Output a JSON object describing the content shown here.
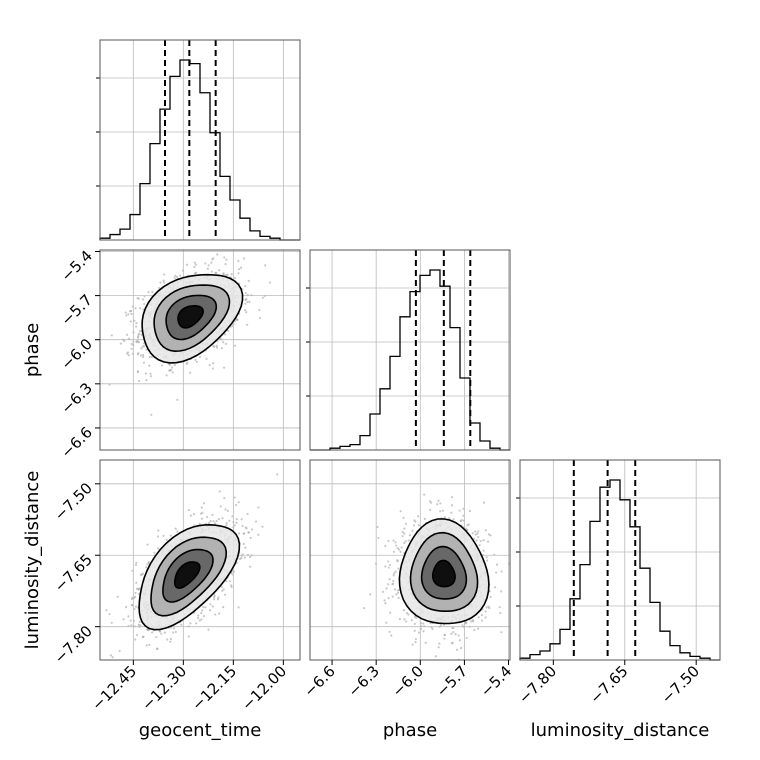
{
  "chart_data": {
    "type": "corner",
    "parameters": [
      "geocent_time",
      "phase",
      "luminosity_distance"
    ],
    "axes": {
      "geocent_time": {
        "label": "geocent_time",
        "range": [
          -12.55,
          -11.95
        ],
        "ticks": [
          -12.45,
          -12.3,
          -12.15,
          -12.0
        ],
        "tick_labels": [
          "−12.45",
          "−12.30",
          "−12.15",
          "−12.00"
        ]
      },
      "phase": {
        "label": "phase",
        "range": [
          -6.75,
          -5.39
        ],
        "ticks": [
          -6.6,
          -6.3,
          -6.0,
          -5.7,
          -5.4
        ],
        "tick_labels": [
          "−6.6",
          "−6.3",
          "−6.0",
          "−5.7",
          "−5.4"
        ]
      },
      "luminosity_distance": {
        "label": "luminosity_distance",
        "range": [
          -7.87,
          -7.45
        ],
        "ticks": [
          -7.8,
          -7.65,
          -7.5
        ],
        "tick_labels": [
          "−7.80",
          "−7.65",
          "−7.50"
        ]
      }
    },
    "marginals": [
      {
        "param": "geocent_time",
        "quantiles": [
          -12.355,
          -12.282,
          -12.203
        ],
        "bin_edges": [
          -12.55,
          -12.52,
          -12.49,
          -12.46,
          -12.43,
          -12.4,
          -12.37,
          -12.34,
          -12.31,
          -12.28,
          -12.25,
          -12.22,
          -12.19,
          -12.16,
          -12.13,
          -12.1,
          -12.07,
          -12.04,
          -12.01,
          -11.98,
          -11.95
        ],
        "counts": [
          1,
          3,
          6,
          14,
          31,
          53,
          72,
          90,
          99,
          97,
          81,
          59,
          35,
          22,
          12,
          5,
          2,
          1,
          0,
          0
        ]
      },
      {
        "param": "phase",
        "quantiles": [
          -6.03,
          -5.84,
          -5.66
        ],
        "bin_edges": [
          -6.75,
          -6.682,
          -6.614,
          -6.546,
          -6.478,
          -6.41,
          -6.342,
          -6.274,
          -6.206,
          -6.138,
          -6.07,
          -6.002,
          -5.934,
          -5.866,
          -5.798,
          -5.73,
          -5.662,
          -5.594,
          -5.526,
          -5.458,
          -5.39
        ],
        "counts": [
          0,
          0,
          1,
          2,
          3,
          8,
          20,
          34,
          52,
          74,
          88,
          97,
          100,
          91,
          68,
          40,
          15,
          5,
          1,
          0
        ]
      },
      {
        "param": "luminosity_distance",
        "quantiles": [
          -7.757,
          -7.686,
          -7.628
        ],
        "bin_edges": [
          -7.87,
          -7.849,
          -7.828,
          -7.807,
          -7.786,
          -7.765,
          -7.744,
          -7.723,
          -7.702,
          -7.681,
          -7.66,
          -7.639,
          -7.618,
          -7.597,
          -7.576,
          -7.555,
          -7.534,
          -7.513,
          -7.492,
          -7.471,
          -7.45
        ],
        "counts": [
          1,
          3,
          5,
          9,
          17,
          34,
          53,
          77,
          96,
          100,
          89,
          74,
          51,
          32,
          16,
          8,
          4,
          2,
          1,
          0
        ]
      }
    ],
    "joint": [
      {
        "x": "geocent_time",
        "y": "phase",
        "mean": [
          -12.28,
          -5.84
        ],
        "std": [
          0.075,
          0.15
        ],
        "corr": 0.35,
        "levels_sigma": [
          0.5,
          1.0,
          1.5,
          2.0
        ],
        "scatter_count": 1400
      },
      {
        "x": "geocent_time",
        "y": "luminosity_distance",
        "mean": [
          -12.29,
          -7.69
        ],
        "std": [
          0.075,
          0.055
        ],
        "corr": 0.55,
        "levels_sigma": [
          0.5,
          1.0,
          1.5,
          2.0
        ],
        "scatter_count": 1400
      },
      {
        "x": "phase",
        "y": "luminosity_distance",
        "mean": [
          -5.84,
          -7.69
        ],
        "std": [
          0.15,
          0.055
        ],
        "corr": -0.05,
        "levels_sigma": [
          0.5,
          1.0,
          1.5,
          2.0
        ],
        "scatter_count": 1400
      }
    ],
    "grid": true
  }
}
